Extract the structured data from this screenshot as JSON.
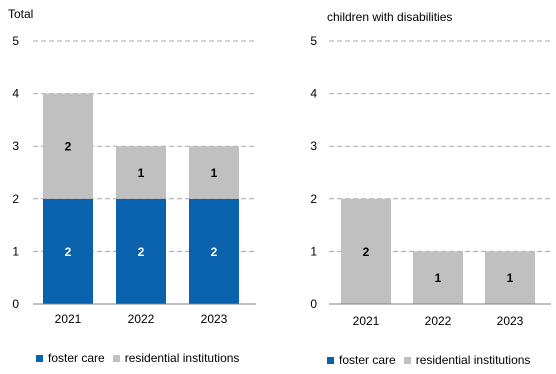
{
  "colors": {
    "foster_care": "#0a62ad",
    "residential_institutions": "#c0c0c0",
    "grid": "#a6a6a6",
    "axis": "#808080",
    "label_on_dark": "#ffffff",
    "label_on_light": "#000000"
  },
  "chart_data": [
    {
      "type": "bar",
      "stacked": true,
      "title": "Total",
      "categories": [
        "2021",
        "2022",
        "2023"
      ],
      "series": [
        {
          "name": "foster care",
          "values": [
            2,
            2,
            2
          ]
        },
        {
          "name": "residential institutions",
          "values": [
            2,
            1,
            1
          ]
        }
      ],
      "ylim": [
        0,
        5
      ],
      "yticks": [
        "0",
        "1",
        "2",
        "3",
        "4",
        "5"
      ],
      "grid": true,
      "legend": "bottom"
    },
    {
      "type": "bar",
      "stacked": true,
      "title": "children with disabilities",
      "categories": [
        "2021",
        "2022",
        "2023"
      ],
      "series": [
        {
          "name": "foster care",
          "values": [
            0,
            0,
            0
          ]
        },
        {
          "name": "residential institutions",
          "values": [
            2,
            1,
            1
          ]
        }
      ],
      "ylim": [
        0,
        5
      ],
      "yticks": [
        "0",
        "1",
        "2",
        "3",
        "4",
        "5"
      ],
      "grid": true,
      "legend": "bottom"
    }
  ]
}
